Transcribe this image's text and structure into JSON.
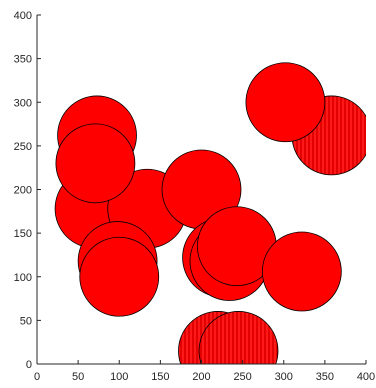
{
  "chart_data": {
    "type": "scatter",
    "title": "",
    "xlabel": "",
    "ylabel": "",
    "xlim": [
      0,
      400
    ],
    "ylim": [
      0,
      400
    ],
    "x_ticks": [
      "0",
      "50",
      "100",
      "150",
      "200",
      "250",
      "300",
      "350",
      "400"
    ],
    "y_ticks": [
      "0",
      "50",
      "100",
      "150",
      "200",
      "250",
      "300",
      "350",
      "400"
    ],
    "grid": false,
    "legend": "none",
    "marker": "circle",
    "marker_radius_data_units": 48,
    "fill_color": "#ff0000",
    "edge_color": "#000000",
    "points": [
      {
        "x": 358,
        "y": 262,
        "hatched": true
      },
      {
        "x": 302,
        "y": 300,
        "hatched": false
      },
      {
        "x": 70,
        "y": 178,
        "hatched": false
      },
      {
        "x": 73,
        "y": 262,
        "hatched": false
      },
      {
        "x": 134,
        "y": 178,
        "hatched": false
      },
      {
        "x": 71,
        "y": 230,
        "hatched": false
      },
      {
        "x": 98,
        "y": 118,
        "hatched": false
      },
      {
        "x": 100,
        "y": 100,
        "hatched": false
      },
      {
        "x": 200,
        "y": 200,
        "hatched": false
      },
      {
        "x": 225,
        "y": 122,
        "hatched": false
      },
      {
        "x": 234,
        "y": 118,
        "hatched": false
      },
      {
        "x": 243,
        "y": 135,
        "hatched": false
      },
      {
        "x": 322,
        "y": 106,
        "hatched": false
      },
      {
        "x": 220,
        "y": 15,
        "hatched": true
      },
      {
        "x": 245,
        "y": 15,
        "hatched": true
      }
    ]
  }
}
